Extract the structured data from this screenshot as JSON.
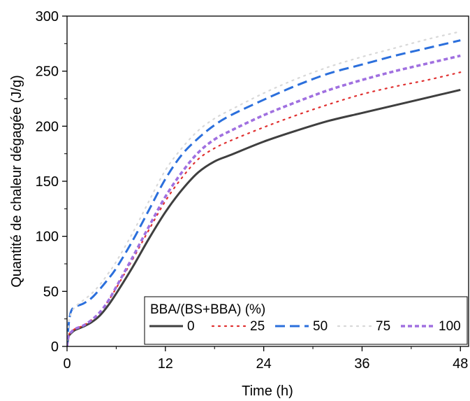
{
  "chart_data": {
    "type": "line",
    "xlabel": "Time (h)",
    "ylabel": "Quantité de chaleur dégagée (J/g)",
    "xlim": [
      0,
      49
    ],
    "ylim": [
      0,
      300
    ],
    "xticks": [
      0,
      12,
      24,
      36,
      48
    ],
    "yticks": [
      0,
      50,
      100,
      150,
      200,
      250,
      300
    ],
    "grid": false,
    "legend": {
      "title": "BBA/(BS+BBA) (%)",
      "placement": "bottom-right"
    },
    "x": [
      0,
      0.2,
      0.5,
      1,
      2,
      3,
      4,
      5,
      6,
      8,
      10,
      12,
      14,
      16,
      18,
      20,
      24,
      28,
      32,
      36,
      40,
      44,
      48
    ],
    "series": [
      {
        "name": "0",
        "color": "#3f3f3f",
        "dash": "solid",
        "values": [
          0,
          9,
          12,
          15,
          18,
          22,
          28,
          37,
          48,
          72,
          98,
          122,
          142,
          158,
          168,
          174,
          186,
          196,
          205,
          212,
          219,
          226,
          233
        ]
      },
      {
        "name": "25",
        "color": "#e03030",
        "dash": "dotted",
        "values": [
          0,
          10,
          13,
          16,
          19,
          24,
          31,
          41,
          53,
          79,
          106,
          132,
          153,
          170,
          180,
          187,
          199,
          210,
          220,
          229,
          236,
          242,
          249
        ]
      },
      {
        "name": "50",
        "color": "#2b6fdc",
        "dash": "dashed",
        "values": [
          0,
          20,
          32,
          36,
          39,
          44,
          52,
          61,
          71,
          96,
          124,
          152,
          174,
          189,
          201,
          210,
          224,
          237,
          248,
          256,
          264,
          271,
          278
        ]
      },
      {
        "name": "75",
        "color": "#d8d8d8",
        "dash": "dotted",
        "values": [
          0,
          22,
          30,
          36,
          42,
          48,
          56,
          66,
          77,
          103,
          132,
          160,
          180,
          196,
          207,
          215,
          230,
          243,
          254,
          263,
          271,
          279,
          286
        ]
      },
      {
        "name": "100",
        "color": "#a070e0",
        "dash": "short-dash",
        "values": [
          0,
          10,
          13,
          16,
          19,
          24,
          31,
          41,
          54,
          81,
          109,
          136,
          158,
          176,
          188,
          196,
          210,
          222,
          233,
          242,
          250,
          257,
          264
        ]
      }
    ]
  }
}
